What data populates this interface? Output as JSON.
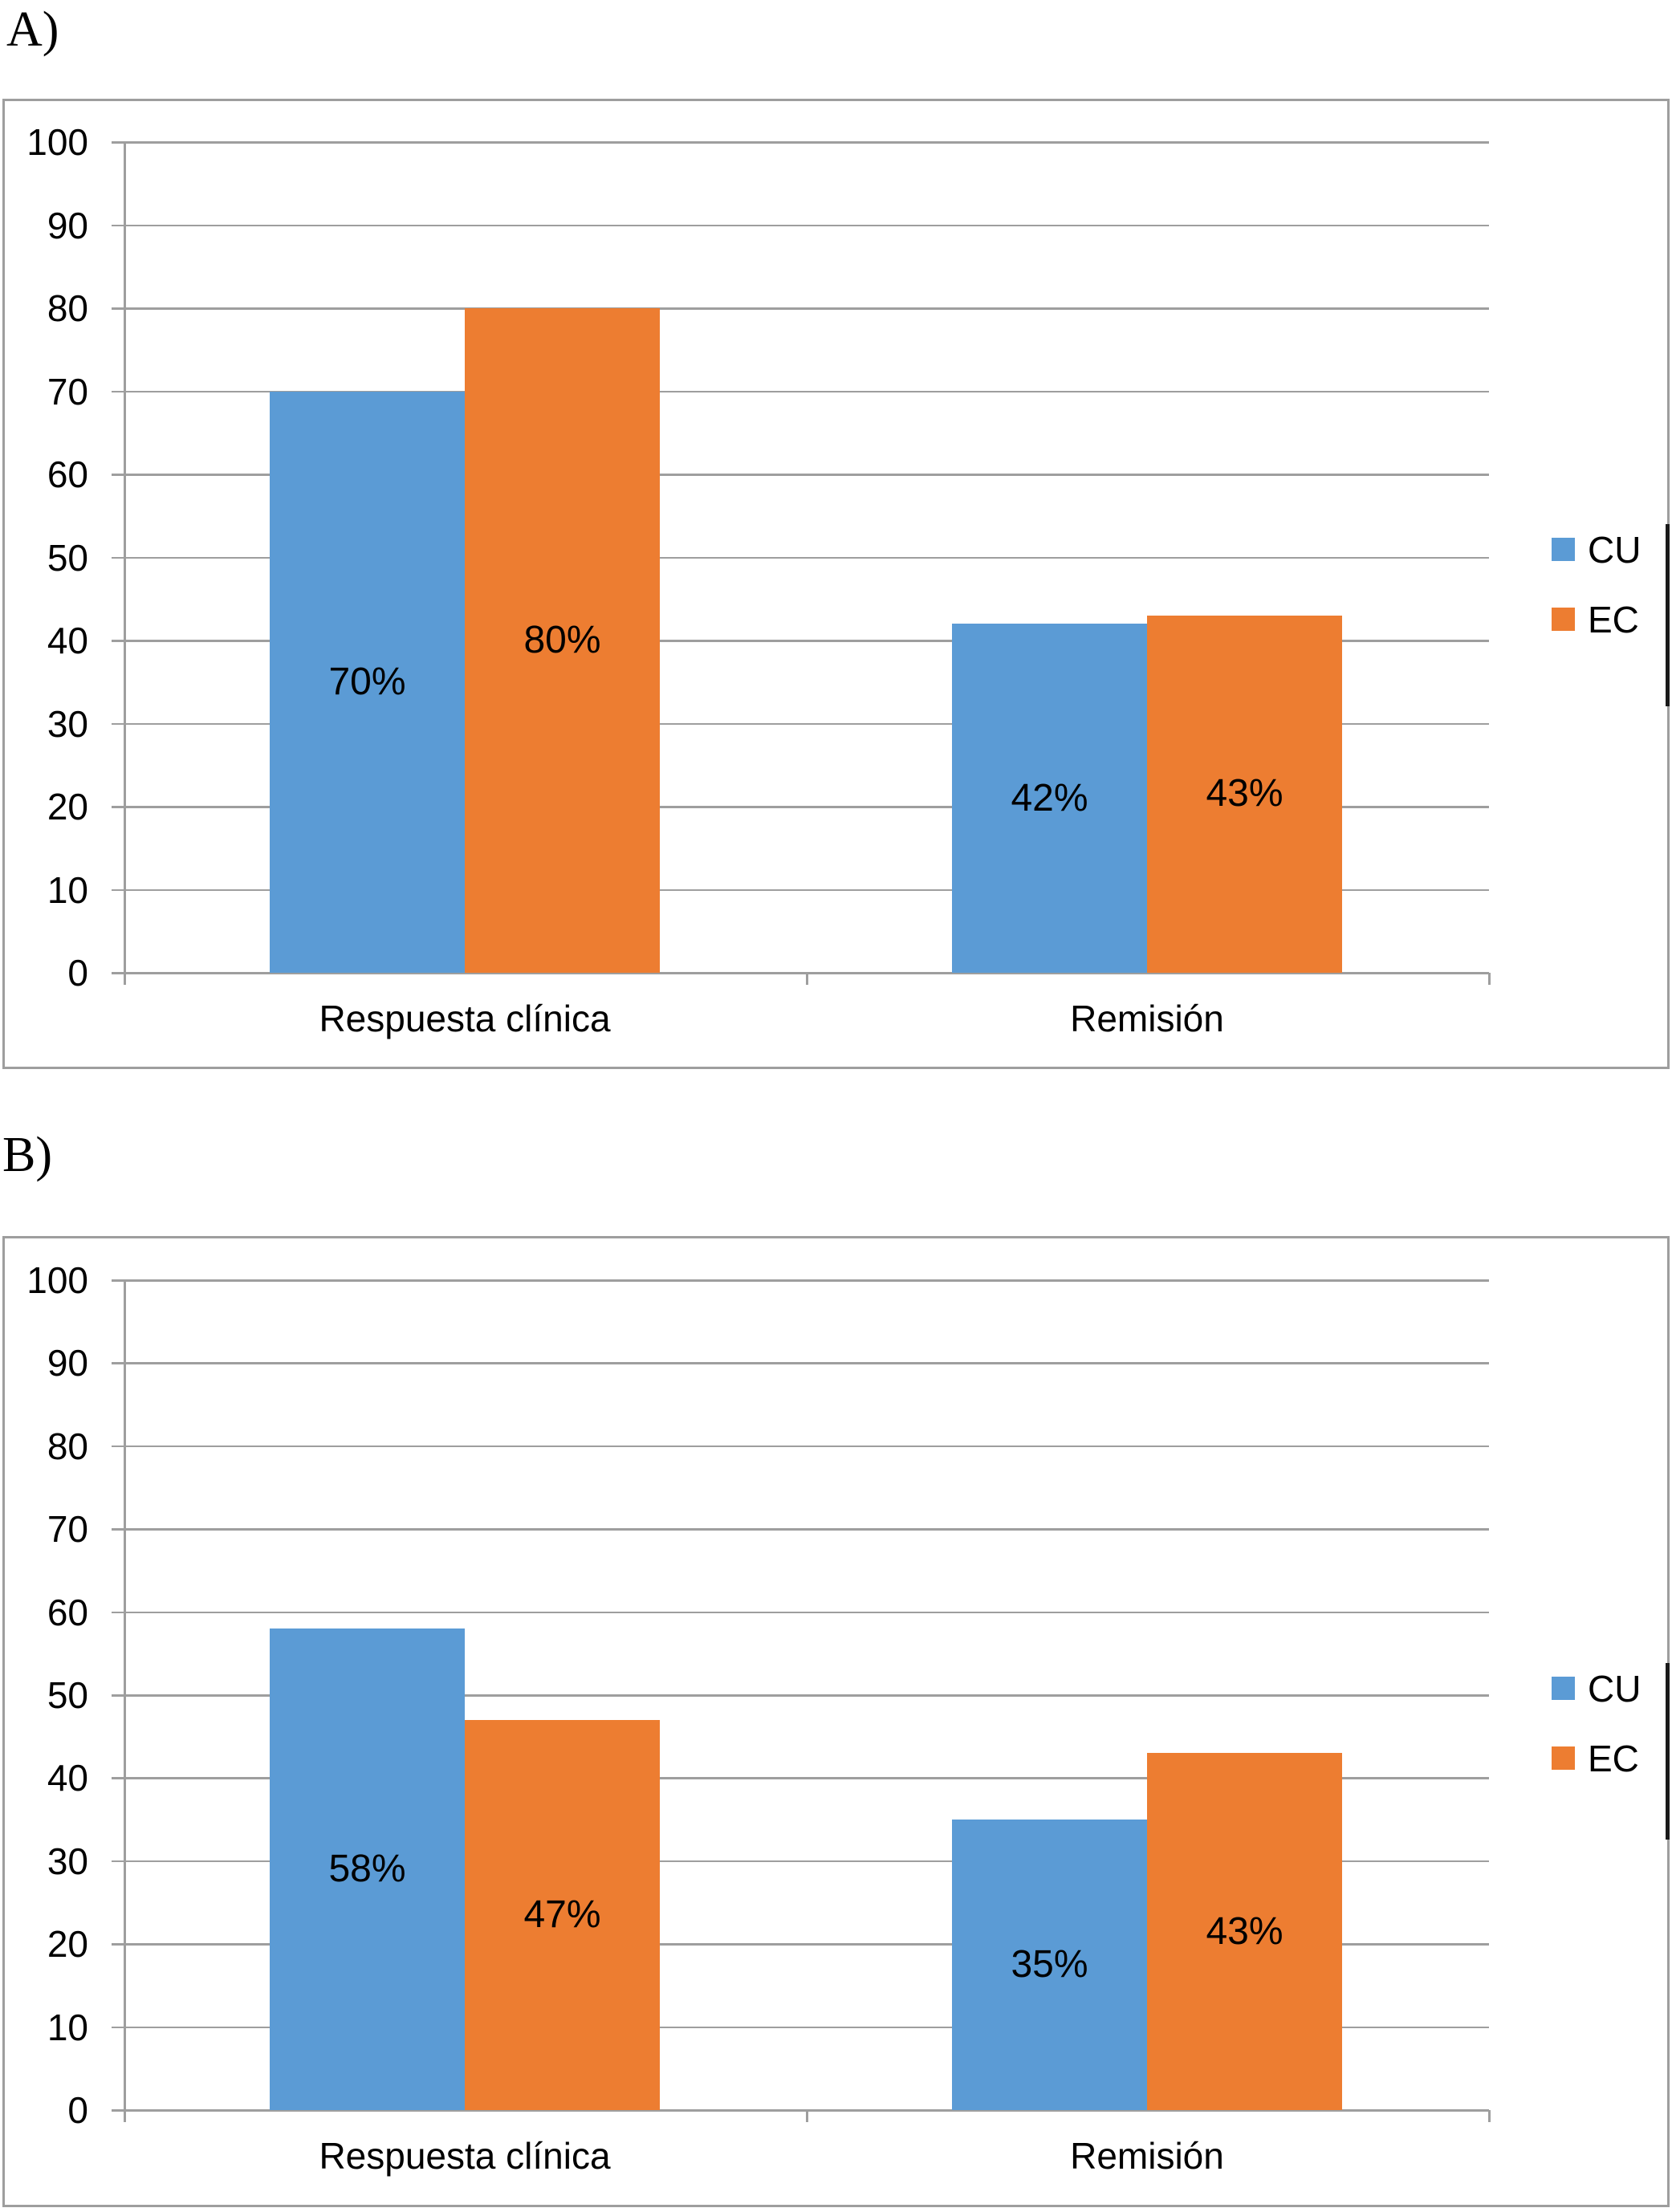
{
  "page": {
    "background": "#FFFFFF"
  },
  "colors": {
    "cu_blue": "#5B9BD5",
    "ec_orange": "#ED7D31",
    "gridline_gray": "#9E9E9E",
    "panel_border_gray": "#9E9E9E",
    "text_black": "#000000",
    "legend_side_line_black": "#1A1A1A"
  },
  "chart_data": [
    {
      "panel_label": "A)",
      "type": "bar",
      "categories": [
        "Respuesta clínica",
        "Remisión"
      ],
      "series": [
        {
          "name": "CU",
          "color": "#5B9BD5",
          "values": [
            70,
            42
          ],
          "data_labels": [
            "70%",
            "42%"
          ]
        },
        {
          "name": "EC",
          "color": "#ED7D31",
          "values": [
            80,
            43
          ],
          "data_labels": [
            "80%",
            "43%"
          ]
        }
      ],
      "ylim": [
        0,
        100
      ],
      "yticks": [
        100,
        90,
        80,
        70,
        60,
        50,
        40,
        30,
        20,
        10,
        0
      ],
      "grid": true,
      "legend": {
        "position": "right",
        "entries": [
          "CU",
          "EC"
        ]
      }
    },
    {
      "panel_label": "B)",
      "type": "bar",
      "categories": [
        "Respuesta clínica",
        "Remisión"
      ],
      "series": [
        {
          "name": "CU",
          "color": "#5B9BD5",
          "values": [
            58,
            35
          ],
          "data_labels": [
            "58%",
            "35%"
          ]
        },
        {
          "name": "EC",
          "color": "#ED7D31",
          "values": [
            47,
            43
          ],
          "data_labels": [
            "47%",
            "43%"
          ]
        }
      ],
      "ylim": [
        0,
        100
      ],
      "yticks": [
        100,
        90,
        80,
        70,
        60,
        50,
        40,
        30,
        20,
        10,
        0
      ],
      "grid": true,
      "legend": {
        "position": "right",
        "entries": [
          "CU",
          "EC"
        ]
      }
    }
  ]
}
